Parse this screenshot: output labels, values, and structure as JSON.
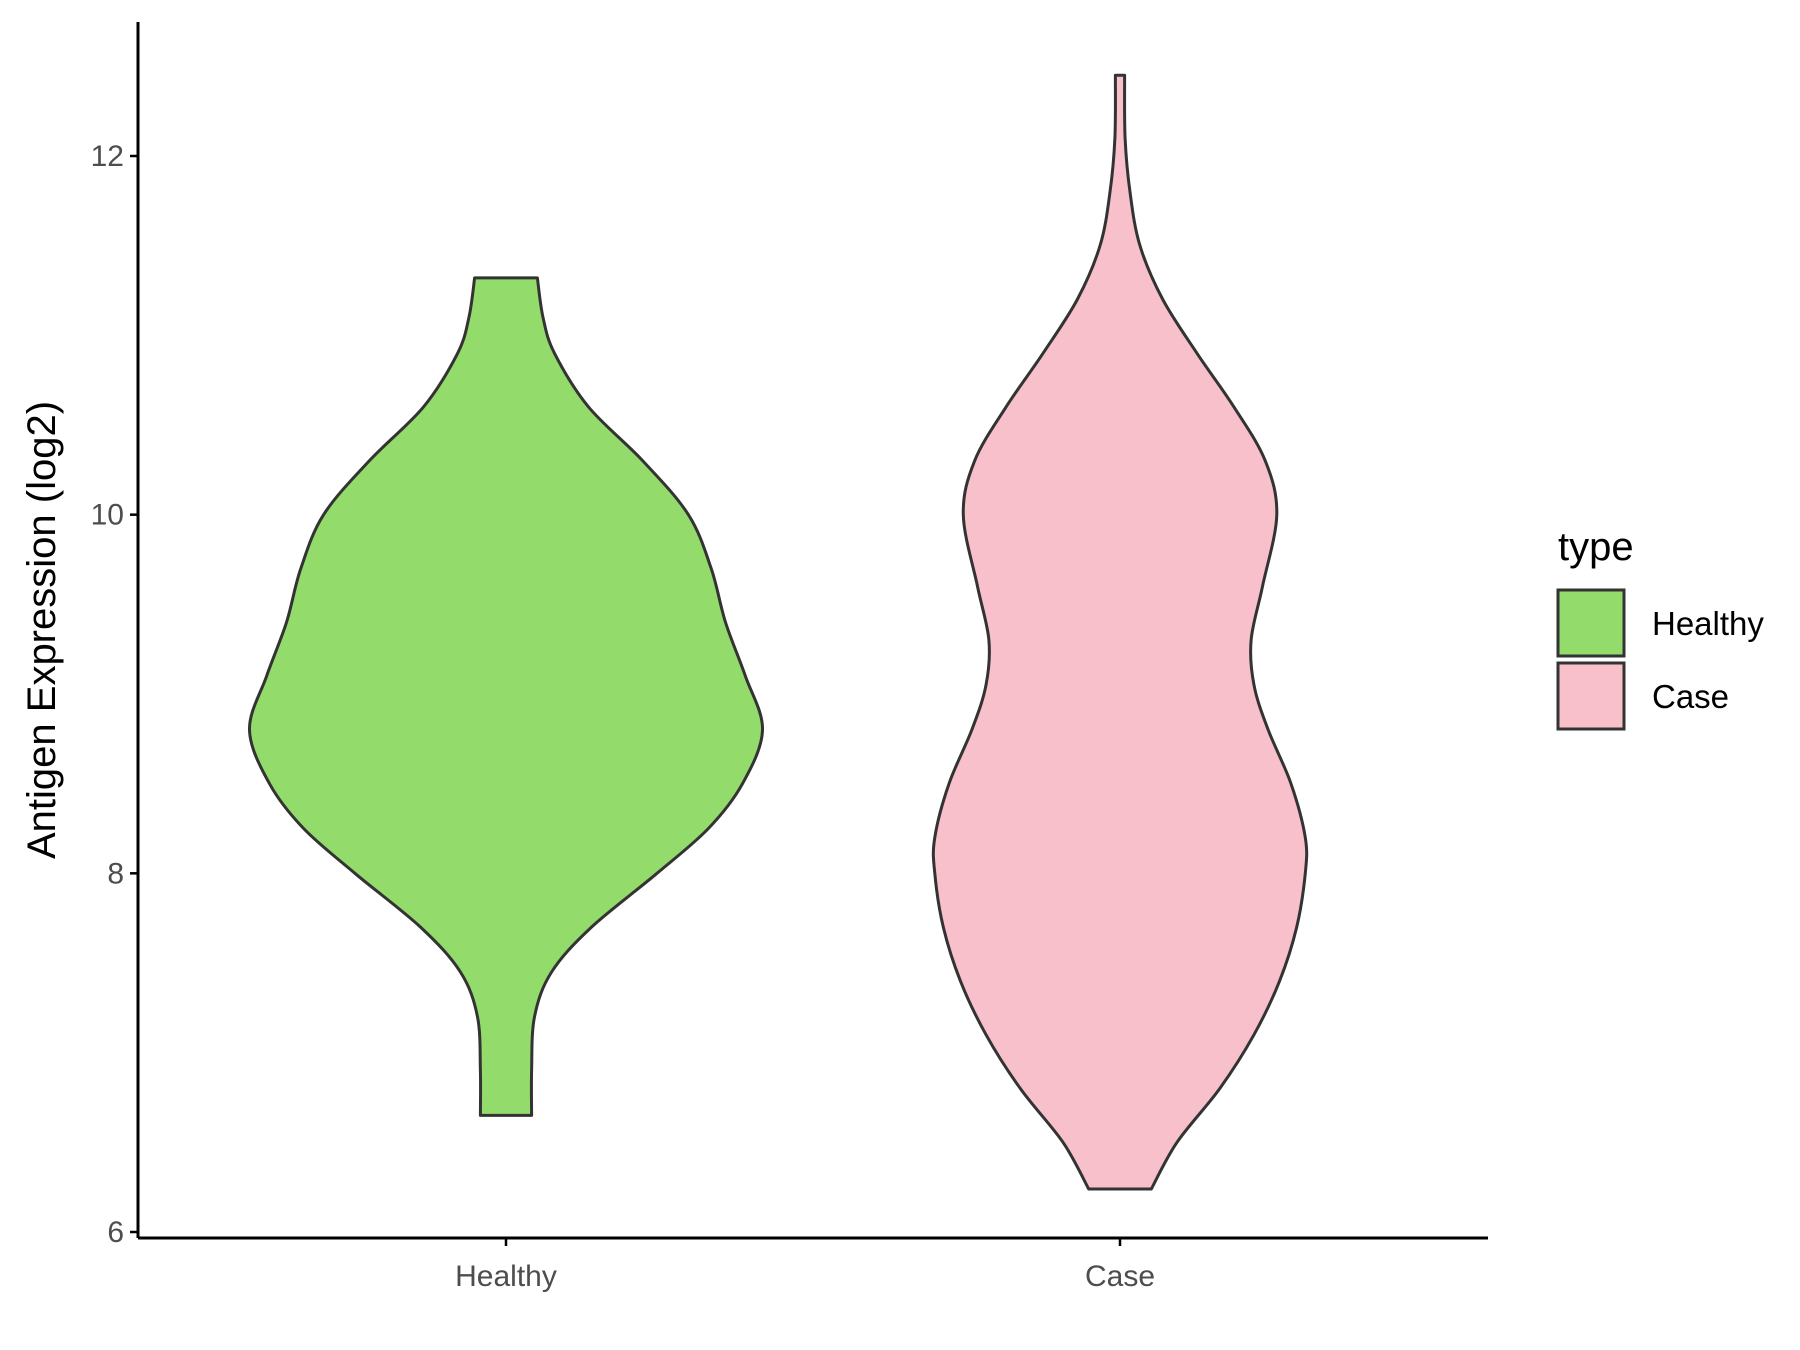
{
  "chart_data": {
    "type": "violin",
    "title": "",
    "xlabel": "",
    "ylabel": "Antigen Expression (log2)",
    "ylim": [
      5.93,
      12.75
    ],
    "y_ticks": [
      6,
      8,
      10,
      12
    ],
    "y_tick_labels": [
      "6",
      "8",
      "10",
      "12"
    ],
    "categories": [
      "Healthy",
      "Case"
    ],
    "grid": false,
    "legend": {
      "title": "type",
      "position": "right",
      "entries": [
        "Healthy",
        "Case"
      ]
    },
    "colors": {
      "Healthy": "#93DC6B",
      "Case": "#F7C0CB",
      "outline": "#333333"
    },
    "series": [
      {
        "name": "Healthy",
        "min": 6.65,
        "max": 11.32,
        "profile": [
          {
            "y": 6.65,
            "w": 0.09
          },
          {
            "y": 6.9,
            "w": 0.09
          },
          {
            "y": 7.2,
            "w": 0.1
          },
          {
            "y": 7.45,
            "w": 0.16
          },
          {
            "y": 7.7,
            "w": 0.3
          },
          {
            "y": 8.0,
            "w": 0.53
          },
          {
            "y": 8.25,
            "w": 0.71
          },
          {
            "y": 8.5,
            "w": 0.83
          },
          {
            "y": 8.8,
            "w": 0.9
          },
          {
            "y": 9.1,
            "w": 0.84
          },
          {
            "y": 9.4,
            "w": 0.77
          },
          {
            "y": 9.7,
            "w": 0.72
          },
          {
            "y": 10.0,
            "w": 0.64
          },
          {
            "y": 10.3,
            "w": 0.48
          },
          {
            "y": 10.6,
            "w": 0.29
          },
          {
            "y": 10.9,
            "w": 0.17
          },
          {
            "y": 11.1,
            "w": 0.13
          },
          {
            "y": 11.32,
            "w": 0.11
          }
        ]
      },
      {
        "name": "Case",
        "min": 6.24,
        "max": 12.45,
        "profile": [
          {
            "y": 6.24,
            "w": 0.11
          },
          {
            "y": 6.5,
            "w": 0.2
          },
          {
            "y": 6.8,
            "w": 0.35
          },
          {
            "y": 7.1,
            "w": 0.47
          },
          {
            "y": 7.4,
            "w": 0.56
          },
          {
            "y": 7.7,
            "w": 0.62
          },
          {
            "y": 8.0,
            "w": 0.65
          },
          {
            "y": 8.2,
            "w": 0.65
          },
          {
            "y": 8.5,
            "w": 0.6
          },
          {
            "y": 8.8,
            "w": 0.52
          },
          {
            "y": 9.05,
            "w": 0.47
          },
          {
            "y": 9.3,
            "w": 0.46
          },
          {
            "y": 9.6,
            "w": 0.5
          },
          {
            "y": 10.0,
            "w": 0.55
          },
          {
            "y": 10.3,
            "w": 0.51
          },
          {
            "y": 10.6,
            "w": 0.4
          },
          {
            "y": 10.9,
            "w": 0.27
          },
          {
            "y": 11.2,
            "w": 0.15
          },
          {
            "y": 11.5,
            "w": 0.07
          },
          {
            "y": 11.8,
            "w": 0.035
          },
          {
            "y": 12.1,
            "w": 0.018
          },
          {
            "y": 12.45,
            "w": 0.016
          }
        ]
      }
    ]
  }
}
